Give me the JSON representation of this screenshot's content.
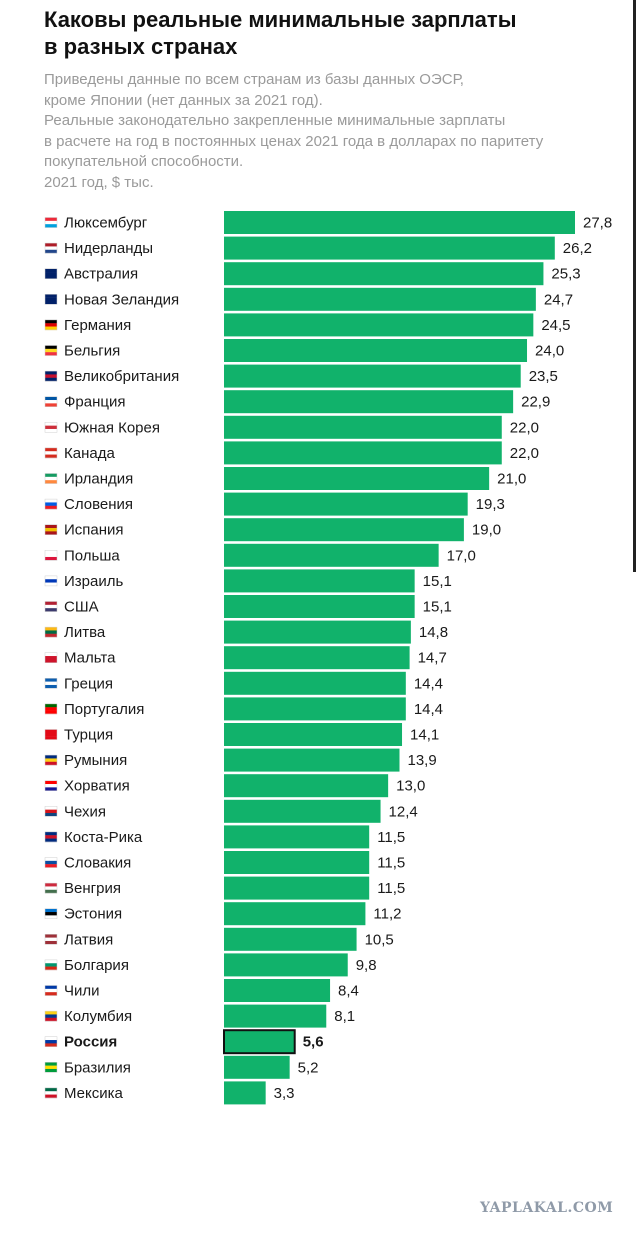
{
  "header": {
    "title_lines": [
      "Каковы реальные минимальные зарплаты",
      "в разных странах"
    ],
    "subtitle_lines": [
      "Приведены данные по всем странам из базы данных ОЭСР,",
      "кроме Японии (нет данных за 2021 год).",
      "Реальные законодательно закрепленные минимальные зарплаты",
      "в расчете на год в постоянных ценах 2021 года в долларах по паритету",
      "покупательной способности.",
      "2021 год, $ тыс."
    ]
  },
  "chart_data": {
    "type": "bar",
    "orientation": "horizontal",
    "bar_color": "#11b26b",
    "highlight_outline_color": "#111111",
    "highlighted_category": "Россия",
    "xlim": [
      0,
      27.8
    ],
    "categories": [
      "Люксембург",
      "Нидерланды",
      "Австралия",
      "Новая Зеландия",
      "Германия",
      "Бельгия",
      "Великобритания",
      "Франция",
      "Южная Корея",
      "Канада",
      "Ирландия",
      "Словения",
      "Испания",
      "Польша",
      "Израиль",
      "США",
      "Литва",
      "Мальта",
      "Греция",
      "Португалия",
      "Турция",
      "Румыния",
      "Хорватия",
      "Чехия",
      "Коста-Рика",
      "Словакия",
      "Венгрия",
      "Эстония",
      "Латвия",
      "Болгария",
      "Чили",
      "Колумбия",
      "Россия",
      "Бразилия",
      "Мексика"
    ],
    "values": [
      27.8,
      26.2,
      25.3,
      24.7,
      24.5,
      24.0,
      23.5,
      22.9,
      22.0,
      22.0,
      21.0,
      19.3,
      19.0,
      17.0,
      15.1,
      15.1,
      14.8,
      14.7,
      14.4,
      14.4,
      14.1,
      13.9,
      13.0,
      12.4,
      11.5,
      11.5,
      11.5,
      11.2,
      10.5,
      9.8,
      8.4,
      8.1,
      5.6,
      5.2,
      3.3
    ],
    "value_labels": [
      "27,8",
      "26,2",
      "25,3",
      "24,7",
      "24,5",
      "24,0",
      "23,5",
      "22,9",
      "22,0",
      "22,0",
      "21,0",
      "19,3",
      "19,0",
      "17,0",
      "15,1",
      "15,1",
      "14,8",
      "14,7",
      "14,4",
      "14,4",
      "14,1",
      "13,9",
      "13,0",
      "12,4",
      "11,5",
      "11,5",
      "11,5",
      "11,2",
      "10,5",
      "9,8",
      "8,4",
      "8,1",
      "5,6",
      "5,2",
      "3,3"
    ],
    "flag_icons": [
      "luxembourg-flag-icon",
      "netherlands-flag-icon",
      "australia-flag-icon",
      "new-zealand-flag-icon",
      "germany-flag-icon",
      "belgium-flag-icon",
      "uk-flag-icon",
      "france-flag-icon",
      "south-korea-flag-icon",
      "canada-flag-icon",
      "ireland-flag-icon",
      "slovenia-flag-icon",
      "spain-flag-icon",
      "poland-flag-icon",
      "israel-flag-icon",
      "usa-flag-icon",
      "lithuania-flag-icon",
      "malta-flag-icon",
      "greece-flag-icon",
      "portugal-flag-icon",
      "turkey-flag-icon",
      "romania-flag-icon",
      "croatia-flag-icon",
      "czechia-flag-icon",
      "costa-rica-flag-icon",
      "slovakia-flag-icon",
      "hungary-flag-icon",
      "estonia-flag-icon",
      "latvia-flag-icon",
      "bulgaria-flag-icon",
      "chile-flag-icon",
      "colombia-flag-icon",
      "russia-flag-icon",
      "brazil-flag-icon",
      "mexico-flag-icon"
    ],
    "flag_colors": [
      [
        "#ed2939",
        "#ffffff",
        "#00a1de"
      ],
      [
        "#ae1c28",
        "#ffffff",
        "#21468b"
      ],
      [
        "#012169",
        "#012169",
        "#012169"
      ],
      [
        "#012169",
        "#012169",
        "#012169"
      ],
      [
        "#000000",
        "#dd0000",
        "#ffce00"
      ],
      [
        "#000000",
        "#fdda24",
        "#ef3340"
      ],
      [
        "#012169",
        "#c8102e",
        "#012169"
      ],
      [
        "#0055a4",
        "#ffffff",
        "#ef4135"
      ],
      [
        "#ffffff",
        "#cd2e3a",
        "#ffffff"
      ],
      [
        "#d52b1e",
        "#ffffff",
        "#d52b1e"
      ],
      [
        "#169b62",
        "#ffffff",
        "#ff883e"
      ],
      [
        "#ffffff",
        "#005ce6",
        "#ed1c24"
      ],
      [
        "#aa151b",
        "#f1bf00",
        "#aa151b"
      ],
      [
        "#ffffff",
        "#ffffff",
        "#dc143c"
      ],
      [
        "#ffffff",
        "#0038b8",
        "#ffffff"
      ],
      [
        "#b22234",
        "#ffffff",
        "#3c3b6e"
      ],
      [
        "#fdb913",
        "#006a44",
        "#c1272d"
      ],
      [
        "#ffffff",
        "#cf142b",
        "#cf142b"
      ],
      [
        "#0d5eaf",
        "#ffffff",
        "#0d5eaf"
      ],
      [
        "#006600",
        "#ff0000",
        "#ff0000"
      ],
      [
        "#e30a17",
        "#e30a17",
        "#e30a17"
      ],
      [
        "#002b7f",
        "#fcd116",
        "#ce1126"
      ],
      [
        "#ff0000",
        "#ffffff",
        "#171796"
      ],
      [
        "#ffffff",
        "#d7141a",
        "#11457e"
      ],
      [
        "#002b7f",
        "#ce1126",
        "#002b7f"
      ],
      [
        "#ffffff",
        "#0b4ea2",
        "#ee1c25"
      ],
      [
        "#cd2a3e",
        "#ffffff",
        "#436f4d"
      ],
      [
        "#0072ce",
        "#000000",
        "#ffffff"
      ],
      [
        "#9e3039",
        "#ffffff",
        "#9e3039"
      ],
      [
        "#ffffff",
        "#00966e",
        "#d62612"
      ],
      [
        "#0039a6",
        "#ffffff",
        "#d52b1e"
      ],
      [
        "#fcd116",
        "#003893",
        "#ce1126"
      ],
      [
        "#ffffff",
        "#0039a6",
        "#d52b1e"
      ],
      [
        "#009c3b",
        "#ffdf00",
        "#009c3b"
      ],
      [
        "#006847",
        "#ffffff",
        "#ce1126"
      ]
    ]
  },
  "watermark": "YAPLAKAL.COM"
}
